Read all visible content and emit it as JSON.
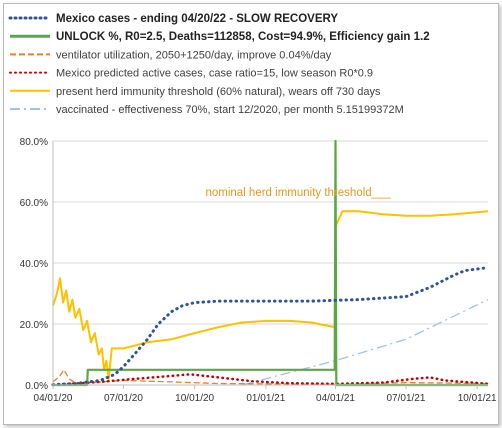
{
  "chart_data": {
    "type": "line",
    "legend": [
      {
        "key": "cases",
        "label": "Mexico cases - ending 04/20/22 - SLOW RECOVERY",
        "color": "#2f5597",
        "style": "dotted",
        "bold": true
      },
      {
        "key": "unlock",
        "label": "UNLOCK %, R0=2.5,  Deaths=112858, Cost=94.9%, Efficiency gain 1.2",
        "color": "#5aa845",
        "style": "solid",
        "bold": true
      },
      {
        "key": "ventilator",
        "label": "ventilator utilization, 2050+1250/day, improve 0.04%/day",
        "color": "#ed7d31",
        "style": "dashed",
        "bold": false
      },
      {
        "key": "predicted",
        "label": "Mexico predicted active cases, case ratio=15, low season R0*0.9",
        "color": "#c00000",
        "style": "dotted",
        "bold": false
      },
      {
        "key": "herd",
        "label": "present herd immunity threshold (60% natural), wears off 730 days",
        "color": "#ffc000",
        "style": "solid",
        "bold": false
      },
      {
        "key": "vaccinated",
        "label": "vaccinated - effectiveness 70%, start 12/2020, per month 5.15199372M",
        "color": "#9dc3e6",
        "style": "dashdot",
        "bold": false
      }
    ],
    "y_ticks": [
      "0.0%",
      "20.0%",
      "40.0%",
      "60.0%",
      "80.0%"
    ],
    "x_ticks": [
      "04/01/20",
      "07/01/20",
      "10/01/20",
      "01/01/21",
      "04/01/21",
      "07/01/21",
      "10/01/21"
    ],
    "x_tick_dates": [
      "2020-04-01",
      "2020-07-01",
      "2020-10-01",
      "2021-01-01",
      "2021-04-01",
      "2021-07-01",
      "2021-10-01"
    ],
    "x_range": [
      "2020-04-01",
      "2021-10-15"
    ],
    "ylim": [
      0,
      80
    ],
    "grid": "horizontal",
    "legend_position": "top",
    "annotation": {
      "text": "nominal herd immunity threshold___",
      "y": 60
    },
    "series": {
      "cases": [
        [
          "2020-04-01",
          0.1
        ],
        [
          "2020-05-01",
          0.5
        ],
        [
          "2020-06-01",
          1.5
        ],
        [
          "2020-06-20",
          3.5
        ],
        [
          "2020-07-01",
          6
        ],
        [
          "2020-07-15",
          10
        ],
        [
          "2020-08-01",
          15
        ],
        [
          "2020-08-15",
          20
        ],
        [
          "2020-09-01",
          24
        ],
        [
          "2020-09-15",
          26
        ],
        [
          "2020-10-01",
          27
        ],
        [
          "2020-11-01",
          27.5
        ],
        [
          "2021-01-01",
          27.5
        ],
        [
          "2021-03-01",
          27.5
        ],
        [
          "2021-05-01",
          28
        ],
        [
          "2021-07-01",
          29
        ],
        [
          "2021-08-01",
          32
        ],
        [
          "2021-09-01",
          36
        ],
        [
          "2021-09-15",
          37.5
        ],
        [
          "2021-10-15",
          38.5
        ]
      ],
      "unlock": [
        [
          "2020-04-01",
          0
        ],
        [
          "2020-05-15",
          0
        ],
        [
          "2020-05-16",
          5
        ],
        [
          "2021-03-31",
          5
        ],
        [
          "2021-04-01",
          80
        ],
        [
          "2021-04-02",
          0
        ],
        [
          "2021-10-15",
          0
        ]
      ],
      "ventilator": [
        [
          "2020-04-01",
          1
        ],
        [
          "2020-04-10",
          3
        ],
        [
          "2020-04-15",
          5
        ],
        [
          "2020-04-22",
          2
        ],
        [
          "2020-05-01",
          0.5
        ],
        [
          "2020-07-01",
          1.5
        ],
        [
          "2020-09-01",
          1
        ],
        [
          "2020-11-01",
          0.5
        ],
        [
          "2021-01-01",
          0.4
        ],
        [
          "2021-04-01",
          0.2
        ],
        [
          "2021-07-01",
          0.8
        ],
        [
          "2021-10-15",
          0.5
        ]
      ],
      "predicted": [
        [
          "2020-04-01",
          0.2
        ],
        [
          "2020-05-01",
          0.5
        ],
        [
          "2020-06-01",
          1
        ],
        [
          "2020-07-15",
          2
        ],
        [
          "2020-09-01",
          3
        ],
        [
          "2020-09-25",
          3.5
        ],
        [
          "2020-11-01",
          2.5
        ],
        [
          "2020-12-15",
          1.2
        ],
        [
          "2021-02-01",
          0.6
        ],
        [
          "2021-04-01",
          0.4
        ],
        [
          "2021-06-01",
          0.8
        ],
        [
          "2021-07-10",
          2
        ],
        [
          "2021-08-01",
          2.5
        ],
        [
          "2021-08-20",
          1.5
        ],
        [
          "2021-10-15",
          0.4
        ]
      ],
      "herd": [
        [
          "2020-04-01",
          26
        ],
        [
          "2020-04-06",
          30
        ],
        [
          "2020-04-10",
          35
        ],
        [
          "2020-04-14",
          27
        ],
        [
          "2020-04-18",
          31
        ],
        [
          "2020-04-22",
          24
        ],
        [
          "2020-04-26",
          28
        ],
        [
          "2020-04-30",
          22
        ],
        [
          "2020-05-05",
          25
        ],
        [
          "2020-05-10",
          18
        ],
        [
          "2020-05-15",
          21
        ],
        [
          "2020-05-20",
          14
        ],
        [
          "2020-05-25",
          17
        ],
        [
          "2020-05-30",
          10
        ],
        [
          "2020-06-03",
          12
        ],
        [
          "2020-06-06",
          5
        ],
        [
          "2020-06-09",
          8
        ],
        [
          "2020-06-12",
          2
        ],
        [
          "2020-06-16",
          12
        ],
        [
          "2020-07-01",
          12
        ],
        [
          "2020-08-01",
          14
        ],
        [
          "2020-09-01",
          15
        ],
        [
          "2020-10-01",
          17
        ],
        [
          "2020-11-01",
          19
        ],
        [
          "2020-12-01",
          20.5
        ],
        [
          "2021-01-01",
          21
        ],
        [
          "2021-02-01",
          21
        ],
        [
          "2021-03-01",
          20.5
        ],
        [
          "2021-03-31",
          19
        ],
        [
          "2021-04-01",
          52
        ],
        [
          "2021-04-10",
          57
        ],
        [
          "2021-05-01",
          57
        ],
        [
          "2021-06-01",
          56
        ],
        [
          "2021-07-01",
          55.5
        ],
        [
          "2021-08-01",
          55.5
        ],
        [
          "2021-09-01",
          56
        ],
        [
          "2021-10-15",
          57
        ]
      ],
      "vaccinated": [
        [
          "2020-12-01",
          0
        ],
        [
          "2021-04-01",
          8
        ],
        [
          "2021-07-01",
          15
        ],
        [
          "2021-10-15",
          28
        ]
      ]
    }
  }
}
